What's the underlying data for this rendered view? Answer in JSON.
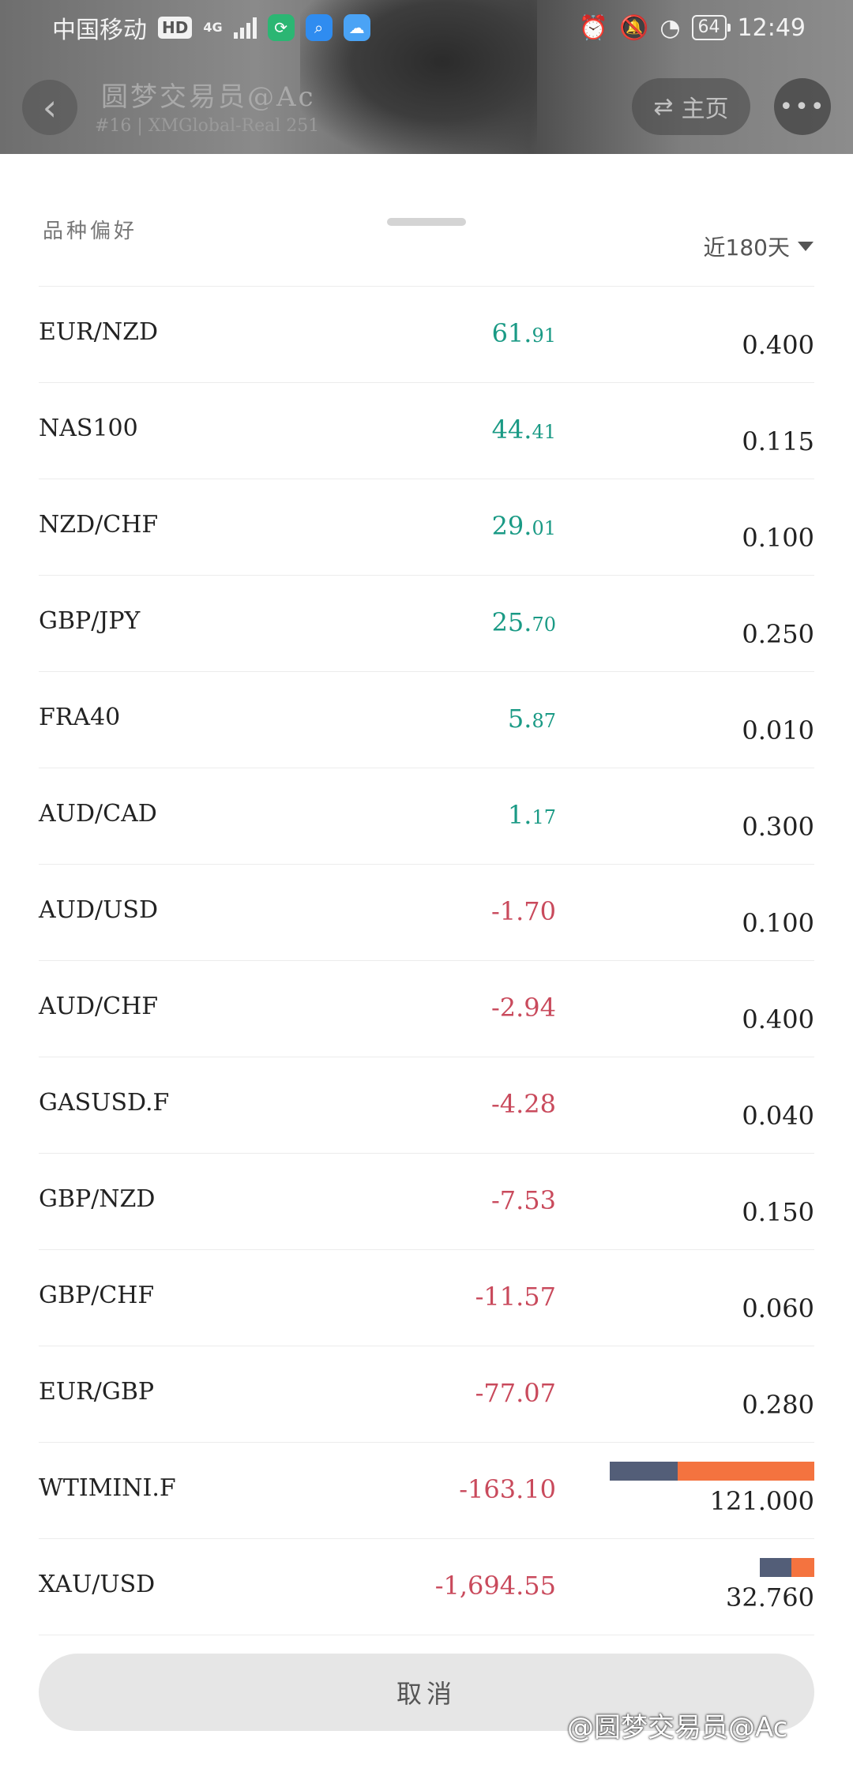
{
  "status_bar": {
    "carrier": "中国移动",
    "hd": "HD",
    "network": "4G",
    "battery": "64",
    "time": "12:49"
  },
  "header": {
    "trader_name": "圆梦交易员@Ac",
    "account": "#16 | XMGlobal-Real 251",
    "home_label": "主页",
    "more_label": "•••"
  },
  "sheet": {
    "title": "品种偏好",
    "period": "近180天",
    "cancel_label": "取消"
  },
  "colors": {
    "profit": "#1a9a85",
    "loss": "#c94a5c",
    "buy_bar": "#535e78",
    "sell_bar": "#f4733f"
  },
  "rows": [
    {
      "symbol": "EUR/NZD",
      "pnl_int": "61.",
      "pnl_dec": "91",
      "sign": "pos",
      "volume": "0.400"
    },
    {
      "symbol": "NAS100",
      "pnl_int": "44.",
      "pnl_dec": "41",
      "sign": "pos",
      "volume": "0.115"
    },
    {
      "symbol": "NZD/CHF",
      "pnl_int": "29.",
      "pnl_dec": "01",
      "sign": "pos",
      "volume": "0.100"
    },
    {
      "symbol": "GBP/JPY",
      "pnl_int": "25.",
      "pnl_dec": "70",
      "sign": "pos",
      "volume": "0.250"
    },
    {
      "symbol": "FRA40",
      "pnl_int": "5.",
      "pnl_dec": "87",
      "sign": "pos",
      "volume": "0.010"
    },
    {
      "symbol": "AUD/CAD",
      "pnl_int": "1.",
      "pnl_dec": "17",
      "sign": "pos",
      "volume": "0.300"
    },
    {
      "symbol": "AUD/USD",
      "pnl_int": "-1.70",
      "pnl_dec": "",
      "sign": "neg",
      "volume": "0.100"
    },
    {
      "symbol": "AUD/CHF",
      "pnl_int": "-2.94",
      "pnl_dec": "",
      "sign": "neg",
      "volume": "0.400"
    },
    {
      "symbol": "GASUSD.F",
      "pnl_int": "-4.28",
      "pnl_dec": "",
      "sign": "neg",
      "volume": "0.040"
    },
    {
      "symbol": "GBP/NZD",
      "pnl_int": "-7.53",
      "pnl_dec": "",
      "sign": "neg",
      "volume": "0.150"
    },
    {
      "symbol": "GBP/CHF",
      "pnl_int": "-11.57",
      "pnl_dec": "",
      "sign": "neg",
      "volume": "0.060"
    },
    {
      "symbol": "EUR/GBP",
      "pnl_int": "-77.07",
      "pnl_dec": "",
      "sign": "neg",
      "volume": "0.280"
    },
    {
      "symbol": "WTIMINI.F",
      "pnl_int": "-163.10",
      "pnl_dec": "",
      "sign": "neg",
      "volume": "121.000",
      "bar": {
        "buy_frac": 0.083,
        "sell_frac": 0.167
      }
    },
    {
      "symbol": "XAU/USD",
      "pnl_int": "-1,694.55",
      "pnl_dec": "",
      "sign": "neg",
      "volume": "32.760",
      "bar": {
        "buy_frac": 0.039,
        "sell_frac": 0.028
      }
    }
  ],
  "watermark": "@圆梦交易员@Ac"
}
